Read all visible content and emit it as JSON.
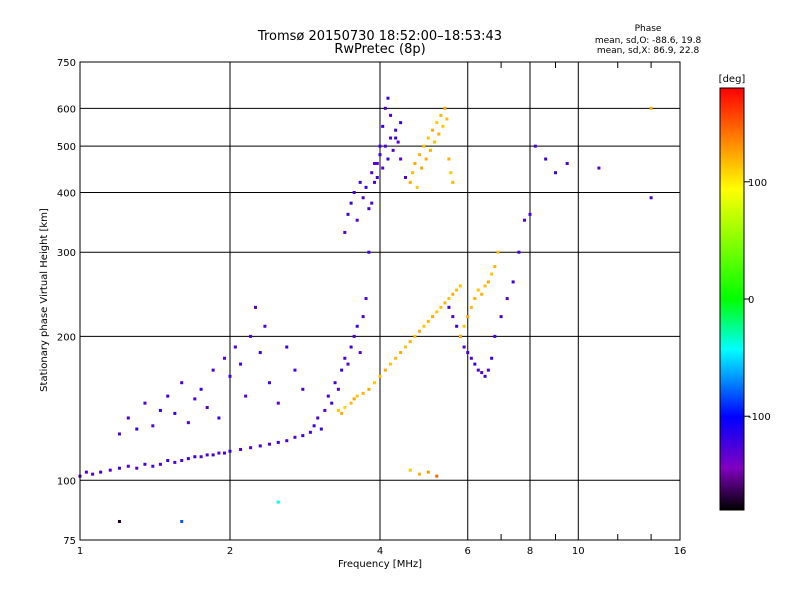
{
  "chart_data": {
    "type": "scatter",
    "title": "Tromsø 20150730 18:52:00–18:53:43",
    "subtitle": "RwPretec (8p)",
    "xlabel": "Frequency [MHz]",
    "ylabel": "Stationary phase Virtual Height [km]",
    "x_scale": "log",
    "y_scale": "log",
    "xlim": [
      1,
      16
    ],
    "ylim": [
      75,
      750
    ],
    "x_ticks": [
      1,
      2,
      4,
      6,
      8,
      10,
      16
    ],
    "x_tick_labels": [
      "1",
      "2",
      "4",
      "6",
      "8",
      "10",
      "16"
    ],
    "x_minor_ticks": [
      7,
      9,
      12,
      14
    ],
    "y_ticks": [
      75,
      100,
      200,
      300,
      400,
      500,
      600,
      750
    ],
    "y_tick_labels": [
      "75",
      "100",
      "200",
      "300",
      "400",
      "500",
      "600",
      "750"
    ],
    "grid": true,
    "phase_info": {
      "heading": "Phase",
      "line_o": "mean, sd,O: -88.6, 19.8",
      "line_x": "mean, sd,X: 86.9, 22.8"
    },
    "colorbar": {
      "label": "[deg]",
      "range": [
        -180,
        180
      ],
      "ticks": [
        100,
        0,
        -100
      ],
      "tick_labels": [
        "100",
        "0",
        "-100"
      ],
      "colors": [
        "#ff0000",
        "#ff8000",
        "#ffff00",
        "#00ff00",
        "#00ffff",
        "#0000ff",
        "#8000c0",
        "#000000"
      ]
    },
    "series": [
      {
        "points": [
          [
            1.0,
            102,
            -110
          ],
          [
            1.03,
            104,
            -108
          ],
          [
            1.06,
            103,
            -112
          ],
          [
            1.1,
            104,
            -105
          ],
          [
            1.15,
            105,
            -110
          ],
          [
            1.2,
            106,
            -100
          ],
          [
            1.25,
            107,
            -108
          ],
          [
            1.3,
            106,
            -112
          ],
          [
            1.35,
            108,
            -104
          ],
          [
            1.4,
            107,
            -110
          ],
          [
            1.45,
            108,
            -106
          ],
          [
            1.5,
            110,
            -100
          ],
          [
            1.55,
            109,
            -108
          ],
          [
            1.6,
            110,
            -110
          ],
          [
            1.65,
            111,
            -105
          ],
          [
            1.7,
            112,
            -100
          ],
          [
            1.75,
            112,
            -112
          ],
          [
            1.8,
            113,
            -108
          ],
          [
            1.85,
            113,
            -104
          ],
          [
            1.9,
            114,
            -110
          ],
          [
            1.95,
            114,
            -106
          ],
          [
            2.0,
            115,
            -100
          ],
          [
            2.1,
            116,
            -108
          ],
          [
            2.2,
            117,
            -112
          ],
          [
            2.3,
            118,
            -104
          ],
          [
            2.4,
            119,
            -110
          ],
          [
            2.5,
            120,
            -100
          ],
          [
            2.6,
            121,
            -106
          ],
          [
            2.7,
            123,
            -110
          ],
          [
            2.8,
            124,
            -102
          ],
          [
            2.9,
            126,
            -108
          ]
        ]
      },
      {
        "points": [
          [
            1.2,
            125,
            -110
          ],
          [
            1.25,
            135,
            -105
          ],
          [
            1.3,
            128,
            -100
          ],
          [
            1.35,
            145,
            -108
          ],
          [
            1.4,
            130,
            -112
          ],
          [
            1.45,
            140,
            -95
          ],
          [
            1.5,
            150,
            -104
          ],
          [
            1.55,
            138,
            -100
          ],
          [
            1.6,
            160,
            -106
          ],
          [
            1.65,
            132,
            -110
          ],
          [
            1.7,
            148,
            -108
          ],
          [
            1.75,
            155,
            -100
          ],
          [
            1.8,
            142,
            -112
          ],
          [
            1.85,
            170,
            -105
          ],
          [
            1.9,
            135,
            -100
          ],
          [
            1.95,
            180,
            -110
          ],
          [
            2.0,
            165,
            -104
          ],
          [
            2.05,
            190,
            -108
          ],
          [
            2.1,
            175,
            -100
          ],
          [
            2.15,
            150,
            -112
          ],
          [
            2.2,
            200,
            -106
          ],
          [
            2.25,
            230,
            -110
          ],
          [
            2.3,
            185,
            -100
          ],
          [
            2.35,
            210,
            -108
          ],
          [
            2.4,
            160,
            -104
          ],
          [
            2.5,
            145,
            -112
          ],
          [
            2.6,
            190,
            -100
          ],
          [
            2.7,
            170,
            -108
          ],
          [
            2.8,
            155,
            -110
          ]
        ]
      },
      {
        "points": [
          [
            2.95,
            130,
            -104
          ],
          [
            3.0,
            135,
            -108
          ],
          [
            3.05,
            128,
            -100
          ],
          [
            3.1,
            140,
            -110
          ],
          [
            3.15,
            150,
            -106
          ],
          [
            3.2,
            145,
            -102
          ],
          [
            3.25,
            160,
            -108
          ],
          [
            3.3,
            155,
            -112
          ],
          [
            3.35,
            170,
            -100
          ],
          [
            3.4,
            180,
            -106
          ],
          [
            3.45,
            175,
            -110
          ],
          [
            3.5,
            190,
            -104
          ],
          [
            3.55,
            200,
            -108
          ],
          [
            3.6,
            210,
            -100
          ],
          [
            3.65,
            185,
            -112
          ],
          [
            3.7,
            220,
            -106
          ],
          [
            3.75,
            240,
            -110
          ],
          [
            3.8,
            300,
            -100
          ],
          [
            3.85,
            380,
            -108
          ],
          [
            3.9,
            420,
            -104
          ],
          [
            3.95,
            460,
            -112
          ],
          [
            4.0,
            500,
            -106
          ],
          [
            4.05,
            550,
            -100
          ],
          [
            4.1,
            600,
            -110
          ],
          [
            4.15,
            630,
            -104
          ],
          [
            4.2,
            580,
            -108
          ],
          [
            4.3,
            520,
            -100
          ],
          [
            4.4,
            470,
            -112
          ],
          [
            4.5,
            430,
            -106
          ]
        ]
      },
      {
        "points": [
          [
            3.4,
            330,
            -110
          ],
          [
            3.45,
            360,
            -106
          ],
          [
            3.5,
            380,
            -100
          ],
          [
            3.55,
            400,
            -108
          ],
          [
            3.6,
            350,
            -112
          ],
          [
            3.65,
            420,
            -104
          ],
          [
            3.7,
            390,
            -110
          ],
          [
            3.75,
            410,
            -100
          ],
          [
            3.8,
            370,
            -106
          ],
          [
            3.85,
            440,
            -108
          ],
          [
            3.9,
            460,
            -112
          ],
          [
            3.95,
            430,
            -100
          ],
          [
            4.0,
            480,
            -104
          ],
          [
            4.05,
            450,
            -110
          ],
          [
            4.1,
            500,
            -106
          ],
          [
            4.15,
            470,
            -100
          ],
          [
            4.2,
            520,
            -108
          ],
          [
            4.25,
            490,
            -112
          ],
          [
            4.3,
            540,
            -104
          ],
          [
            4.35,
            510,
            -110
          ],
          [
            4.4,
            560,
            -100
          ]
        ]
      },
      {
        "points": [
          [
            3.3,
            140,
            100
          ],
          [
            3.35,
            138,
            110
          ],
          [
            3.4,
            142,
            95
          ],
          [
            3.5,
            145,
            105
          ],
          [
            3.55,
            148,
            115
          ],
          [
            3.6,
            150,
            100
          ],
          [
            3.7,
            152,
            108
          ],
          [
            3.8,
            155,
            112
          ],
          [
            3.9,
            160,
            98
          ],
          [
            4.0,
            165,
            104
          ],
          [
            4.1,
            170,
            110
          ],
          [
            4.2,
            175,
            100
          ],
          [
            4.3,
            180,
            106
          ],
          [
            4.4,
            185,
            112
          ],
          [
            4.5,
            190,
            100
          ],
          [
            4.6,
            195,
            108
          ],
          [
            4.7,
            200,
            104
          ],
          [
            4.8,
            205,
            110
          ],
          [
            4.9,
            210,
            100
          ],
          [
            5.0,
            215,
            106
          ],
          [
            5.1,
            220,
            112
          ],
          [
            5.2,
            225,
            100
          ],
          [
            5.3,
            230,
            104
          ],
          [
            5.4,
            235,
            108
          ],
          [
            5.5,
            240,
            100
          ],
          [
            5.6,
            245,
            110
          ],
          [
            5.7,
            250,
            104
          ],
          [
            5.8,
            255,
            100
          ]
        ]
      },
      {
        "points": [
          [
            4.6,
            420,
            110
          ],
          [
            4.65,
            440,
            104
          ],
          [
            4.7,
            460,
            112
          ],
          [
            4.75,
            410,
            100
          ],
          [
            4.8,
            480,
            108
          ],
          [
            4.85,
            450,
            115
          ],
          [
            4.9,
            500,
            104
          ],
          [
            4.95,
            470,
            110
          ],
          [
            5.0,
            520,
            100
          ],
          [
            5.05,
            490,
            108
          ],
          [
            5.1,
            540,
            112
          ],
          [
            5.15,
            510,
            104
          ],
          [
            5.2,
            560,
            100
          ],
          [
            5.25,
            530,
            110
          ],
          [
            5.3,
            580,
            106
          ],
          [
            5.35,
            550,
            100
          ],
          [
            5.4,
            600,
            112
          ],
          [
            5.45,
            570,
            104
          ],
          [
            5.5,
            470,
            110
          ],
          [
            5.55,
            440,
            100
          ],
          [
            5.6,
            420,
            108
          ]
        ]
      },
      {
        "points": [
          [
            5.5,
            230,
            -104
          ],
          [
            5.6,
            220,
            -110
          ],
          [
            5.7,
            210,
            -100
          ],
          [
            5.8,
            200,
            -108
          ],
          [
            5.9,
            190,
            -112
          ],
          [
            6.0,
            185,
            -104
          ],
          [
            6.1,
            180,
            -110
          ],
          [
            6.2,
            175,
            -100
          ],
          [
            6.3,
            170,
            -106
          ],
          [
            6.4,
            168,
            -112
          ],
          [
            6.5,
            165,
            -104
          ],
          [
            6.6,
            170,
            -110
          ],
          [
            6.7,
            180,
            -100
          ],
          [
            6.8,
            200,
            -108
          ],
          [
            7.0,
            220,
            -104
          ],
          [
            7.2,
            240,
            -110
          ],
          [
            7.4,
            260,
            -100
          ],
          [
            7.6,
            300,
            -106
          ],
          [
            7.8,
            350,
            -112
          ],
          [
            8.0,
            360,
            -104
          ]
        ]
      },
      {
        "points": [
          [
            5.8,
            200,
            108
          ],
          [
            5.9,
            210,
            100
          ],
          [
            6.0,
            220,
            112
          ],
          [
            6.1,
            230,
            104
          ],
          [
            6.2,
            240,
            110
          ],
          [
            6.3,
            250,
            100
          ],
          [
            6.4,
            245,
            108
          ],
          [
            6.5,
            255,
            104
          ],
          [
            6.6,
            260,
            112
          ],
          [
            6.7,
            270,
            100
          ],
          [
            6.8,
            280,
            108
          ],
          [
            6.9,
            300,
            104
          ]
        ]
      },
      {
        "points": [
          [
            8.2,
            500,
            -110
          ],
          [
            8.6,
            470,
            -104
          ],
          [
            9.0,
            440,
            -100
          ],
          [
            9.5,
            460,
            -108
          ],
          [
            11.0,
            450,
            -112
          ],
          [
            14.0,
            390,
            -104
          ],
          [
            14.0,
            600,
            110
          ]
        ]
      },
      {
        "points": [
          [
            1.2,
            82,
            -170
          ],
          [
            1.6,
            82,
            -60
          ],
          [
            2.5,
            90,
            -20
          ],
          [
            4.6,
            105,
            100
          ],
          [
            4.8,
            103,
            110
          ],
          [
            5.0,
            104,
            120
          ],
          [
            5.2,
            102,
            140
          ]
        ]
      }
    ]
  }
}
